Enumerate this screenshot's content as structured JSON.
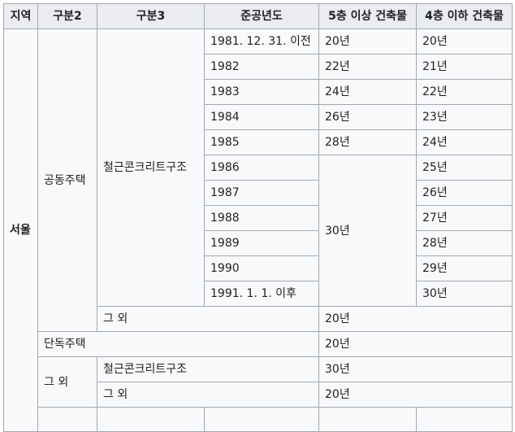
{
  "headers": [
    "지역",
    "구분2",
    "구분3",
    "준공년도",
    "5층 이상 건축물",
    "4층 이하 건축물"
  ],
  "region": "서울",
  "group_apartment": "공동주택",
  "rc_structure": "철근콘크리트구조",
  "other": "그 외",
  "group_detached": "단독주택",
  "group_other": "그 외",
  "years": [
    "1981. 12. 31. 이전",
    "1982",
    "1983",
    "1984",
    "1985",
    "1986",
    "1987",
    "1988",
    "1989",
    "1990",
    "1991. 1. 1. 이후"
  ],
  "five_plus": [
    "20년",
    "22년",
    "24년",
    "26년",
    "28년"
  ],
  "five_plus_merged": "30년",
  "four_below": [
    "20년",
    "21년",
    "22년",
    "23년",
    "24년",
    "25년",
    "26년",
    "27년",
    "28년",
    "29년",
    "30년"
  ],
  "apt_other_value": "20년",
  "detached_value": "20년",
  "other_rc_value": "30년",
  "other_other_value": "20년"
}
